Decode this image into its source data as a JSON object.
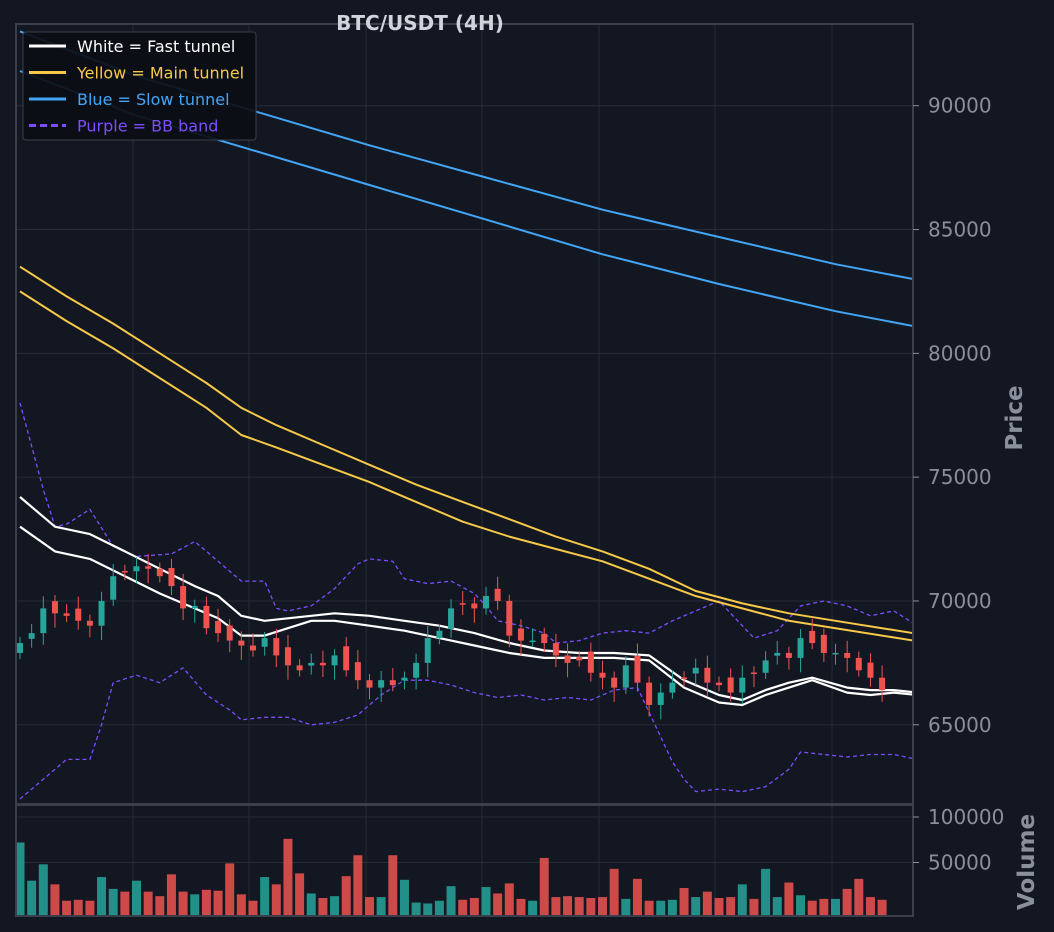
{
  "chart_data": {
    "type": "candlestick",
    "title": "BTC/USDT (4H)",
    "colors": {
      "background": "#131722",
      "grid": "#262b36",
      "axis": "#3a3f4b",
      "up": "#26a69a",
      "down": "#ef5350",
      "fast_tunnel": "#ffffff",
      "main_tunnel": "#f7c948",
      "slow_tunnel": "#42a5f5",
      "bb_band": "#7c4dff"
    },
    "legend": {
      "placement": "top-left",
      "entries": [
        {
          "label": "White = Fast tunnel",
          "color": "#ffffff",
          "style": "solid"
        },
        {
          "label": "Yellow = Main tunnel",
          "color": "#f7c948",
          "style": "solid"
        },
        {
          "label": "Blue = Slow tunnel",
          "color": "#42a5f5",
          "style": "solid"
        },
        {
          "label": "Purple = BB band",
          "color": "#7c4dff",
          "style": "dashed"
        }
      ]
    },
    "price_panel": {
      "ylabel": "Price",
      "ylim": [
        61800,
        93300
      ],
      "yticks": [
        "65000",
        "70000",
        "75000",
        "80000",
        "85000",
        "90000"
      ],
      "grid": true
    },
    "volume_panel": {
      "ylabel": "Volume",
      "ylim": [
        0,
        100000
      ],
      "yticks": [
        "50000",
        "100000"
      ],
      "grid": true
    },
    "bar_count": 75,
    "tunnels": {
      "fast_upper": [
        [
          0,
          74200
        ],
        [
          3,
          73000
        ],
        [
          6,
          72700
        ],
        [
          9,
          72000
        ],
        [
          12,
          71300
        ],
        [
          15,
          70600
        ],
        [
          17,
          70200
        ],
        [
          19,
          69400
        ],
        [
          21,
          69200
        ],
        [
          23,
          69300
        ],
        [
          25,
          69400
        ],
        [
          27,
          69500
        ],
        [
          30,
          69400
        ],
        [
          33,
          69200
        ],
        [
          36,
          69000
        ],
        [
          39,
          68700
        ],
        [
          42,
          68300
        ],
        [
          45,
          68000
        ],
        [
          48,
          67900
        ],
        [
          51,
          67900
        ],
        [
          54,
          67800
        ],
        [
          57,
          66800
        ],
        [
          60,
          66200
        ],
        [
          62,
          66000
        ],
        [
          64,
          66400
        ],
        [
          66,
          66700
        ],
        [
          68,
          66900
        ],
        [
          71,
          66500
        ],
        [
          73,
          66400
        ],
        [
          75,
          66400
        ],
        [
          77,
          66300
        ],
        [
          79,
          66200
        ],
        [
          81,
          66700
        ],
        [
          84,
          66900
        ],
        [
          86,
          67100
        ]
      ],
      "fast_lower": [
        [
          0,
          73000
        ],
        [
          3,
          72000
        ],
        [
          6,
          71700
        ],
        [
          9,
          71000
        ],
        [
          12,
          70300
        ],
        [
          15,
          69700
        ],
        [
          17,
          69300
        ],
        [
          19,
          68600
        ],
        [
          21,
          68600
        ],
        [
          23,
          68900
        ],
        [
          25,
          69200
        ],
        [
          27,
          69200
        ],
        [
          30,
          69000
        ],
        [
          33,
          68800
        ],
        [
          36,
          68500
        ],
        [
          39,
          68200
        ],
        [
          42,
          67900
        ],
        [
          45,
          67700
        ],
        [
          48,
          67700
        ],
        [
          51,
          67700
        ],
        [
          54,
          67600
        ],
        [
          57,
          66500
        ],
        [
          60,
          65900
        ],
        [
          62,
          65800
        ],
        [
          64,
          66200
        ],
        [
          66,
          66500
        ],
        [
          68,
          66800
        ],
        [
          71,
          66300
        ],
        [
          73,
          66200
        ],
        [
          75,
          66300
        ],
        [
          77,
          66200
        ],
        [
          79,
          66100
        ],
        [
          81,
          66600
        ],
        [
          84,
          66800
        ],
        [
          86,
          67000
        ]
      ],
      "main_upper": [
        [
          0,
          83500
        ],
        [
          4,
          82300
        ],
        [
          8,
          81200
        ],
        [
          12,
          80000
        ],
        [
          16,
          78800
        ],
        [
          19,
          77800
        ],
        [
          22,
          77100
        ],
        [
          26,
          76300
        ],
        [
          30,
          75500
        ],
        [
          34,
          74700
        ],
        [
          38,
          74000
        ],
        [
          42,
          73300
        ],
        [
          46,
          72600
        ],
        [
          50,
          72000
        ],
        [
          54,
          71300
        ],
        [
          58,
          70400
        ],
        [
          62,
          69900
        ],
        [
          66,
          69500
        ],
        [
          70,
          69200
        ],
        [
          74,
          68900
        ],
        [
          78,
          68600
        ],
        [
          82,
          68400
        ],
        [
          86,
          68200
        ]
      ],
      "main_lower": [
        [
          0,
          82500
        ],
        [
          4,
          81300
        ],
        [
          8,
          80200
        ],
        [
          12,
          79000
        ],
        [
          16,
          77800
        ],
        [
          19,
          76700
        ],
        [
          22,
          76200
        ],
        [
          26,
          75500
        ],
        [
          30,
          74800
        ],
        [
          34,
          74000
        ],
        [
          38,
          73200
        ],
        [
          42,
          72600
        ],
        [
          46,
          72100
        ],
        [
          50,
          71600
        ],
        [
          54,
          70900
        ],
        [
          58,
          70200
        ],
        [
          62,
          69700
        ],
        [
          66,
          69200
        ],
        [
          70,
          68900
        ],
        [
          74,
          68600
        ],
        [
          78,
          68300
        ],
        [
          82,
          68100
        ],
        [
          86,
          67900
        ]
      ],
      "slow_upper": [
        [
          0,
          93000
        ],
        [
          10,
          91200
        ],
        [
          20,
          89800
        ],
        [
          30,
          88400
        ],
        [
          40,
          87100
        ],
        [
          50,
          85800
        ],
        [
          60,
          84700
        ],
        [
          70,
          83600
        ],
        [
          80,
          82700
        ],
        [
          86,
          82200
        ]
      ],
      "slow_lower": [
        [
          0,
          91400
        ],
        [
          10,
          89600
        ],
        [
          20,
          88200
        ],
        [
          30,
          86800
        ],
        [
          40,
          85400
        ],
        [
          50,
          84000
        ],
        [
          60,
          82800
        ],
        [
          70,
          81700
        ],
        [
          80,
          80800
        ],
        [
          86,
          80300
        ]
      ]
    },
    "bb_band": {
      "upper": [
        [
          0,
          78000
        ],
        [
          2,
          74500
        ],
        [
          3,
          73000
        ],
        [
          4,
          73100
        ],
        [
          6,
          73700
        ],
        [
          8,
          72200
        ],
        [
          10,
          71800
        ],
        [
          13,
          71900
        ],
        [
          15,
          72400
        ],
        [
          17,
          71600
        ],
        [
          19,
          70800
        ],
        [
          21,
          70800
        ],
        [
          22,
          69700
        ],
        [
          23,
          69600
        ],
        [
          25,
          69800
        ],
        [
          27,
          70500
        ],
        [
          29,
          71500
        ],
        [
          30,
          71700
        ],
        [
          32,
          71600
        ],
        [
          33,
          70900
        ],
        [
          35,
          70700
        ],
        [
          37,
          70800
        ],
        [
          39,
          70300
        ],
        [
          40,
          69800
        ],
        [
          41,
          69200
        ],
        [
          43,
          69000
        ],
        [
          45,
          68700
        ],
        [
          46,
          68300
        ],
        [
          48,
          68400
        ],
        [
          50,
          68700
        ],
        [
          52,
          68800
        ],
        [
          54,
          68700
        ],
        [
          56,
          69200
        ],
        [
          58,
          69600
        ],
        [
          60,
          70000
        ],
        [
          62,
          69000
        ],
        [
          63,
          68500
        ],
        [
          65,
          68800
        ],
        [
          67,
          69800
        ],
        [
          69,
          70000
        ],
        [
          71,
          69800
        ],
        [
          73,
          69400
        ],
        [
          75,
          69600
        ],
        [
          77,
          69000
        ],
        [
          79,
          68200
        ],
        [
          81,
          69100
        ],
        [
          83,
          69700
        ],
        [
          85,
          69500
        ],
        [
          86,
          69800
        ]
      ],
      "lower": [
        [
          0,
          62000
        ],
        [
          2,
          62800
        ],
        [
          4,
          63600
        ],
        [
          6,
          63600
        ],
        [
          7,
          65000
        ],
        [
          8,
          66700
        ],
        [
          10,
          67000
        ],
        [
          12,
          66700
        ],
        [
          14,
          67300
        ],
        [
          16,
          66200
        ],
        [
          18,
          65600
        ],
        [
          19,
          65200
        ],
        [
          21,
          65300
        ],
        [
          23,
          65300
        ],
        [
          25,
          65000
        ],
        [
          27,
          65100
        ],
        [
          29,
          65400
        ],
        [
          31,
          66200
        ],
        [
          33,
          66800
        ],
        [
          35,
          66800
        ],
        [
          37,
          66600
        ],
        [
          39,
          66300
        ],
        [
          41,
          66100
        ],
        [
          43,
          66200
        ],
        [
          45,
          66000
        ],
        [
          47,
          66100
        ],
        [
          49,
          66000
        ],
        [
          51,
          66400
        ],
        [
          53,
          66500
        ],
        [
          55,
          64500
        ],
        [
          56,
          63500
        ],
        [
          57,
          62800
        ],
        [
          58,
          62300
        ],
        [
          60,
          62400
        ],
        [
          62,
          62300
        ],
        [
          64,
          62500
        ],
        [
          66,
          63200
        ],
        [
          67,
          63900
        ],
        [
          69,
          63800
        ],
        [
          71,
          63700
        ],
        [
          73,
          63800
        ],
        [
          75,
          63800
        ],
        [
          77,
          63600
        ],
        [
          79,
          63300
        ],
        [
          81,
          63300
        ],
        [
          82,
          63500
        ],
        [
          84,
          64700
        ],
        [
          86,
          65100
        ]
      ]
    },
    "closes": [
      68300,
      68700,
      69700,
      69500,
      69400,
      69200,
      69000,
      70000,
      71000,
      71200,
      71400,
      71300,
      71000,
      70600,
      69700,
      69800,
      68900,
      68700,
      68400,
      68200,
      68000,
      68500,
      67800,
      67400,
      67200,
      67500,
      67400,
      67800,
      67200,
      66800,
      66500,
      66800,
      66600,
      66900,
      67500,
      68500,
      68800,
      69700,
      69900,
      69700,
      70200,
      70000,
      68600,
      68400,
      68400,
      68300,
      67800,
      67500,
      67600,
      67100,
      66900,
      66500,
      67400,
      66700,
      65800,
      66300,
      66700,
      66900,
      67300,
      66700,
      66600,
      66300,
      66900,
      67100,
      67600,
      67900,
      67700,
      68500,
      68300,
      67900,
      67900,
      67700,
      67200,
      66900,
      66400
    ],
    "volumes": [
      72000,
      30000,
      48000,
      26000,
      8000,
      9000,
      8000,
      34000,
      21000,
      18000,
      30000,
      18000,
      13000,
      37000,
      18000,
      15000,
      20000,
      19000,
      49000,
      15000,
      8000,
      34000,
      26000,
      76000,
      38000,
      16000,
      11000,
      13000,
      35000,
      58000,
      12000,
      12000,
      58000,
      31000,
      6000,
      5000,
      8000,
      24000,
      9000,
      11000,
      23000,
      16000,
      27000,
      10000,
      8000,
      55000,
      12000,
      13000,
      12000,
      11000,
      12000,
      43000,
      10000,
      32000,
      8000,
      8000,
      9000,
      22000,
      12000,
      18000,
      11000,
      12000,
      26000,
      10000,
      43000,
      12000,
      28000,
      14000,
      8000,
      10000,
      10000,
      21000,
      32000,
      12000,
      9000
    ]
  }
}
